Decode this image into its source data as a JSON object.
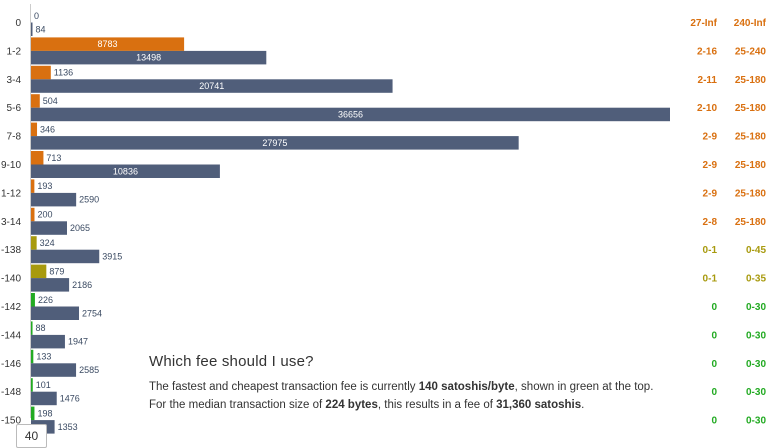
{
  "chart_data": {
    "type": "bar",
    "orientation": "horizontal",
    "categories": [
      "0",
      "1-2",
      "3-4",
      "5-6",
      "7-8",
      "9-10",
      "1-12",
      "3-14",
      "-138",
      "-140",
      "-142",
      "-144",
      "-146",
      "-148",
      "-150"
    ],
    "series": [
      {
        "values": [
          0,
          8783,
          1136,
          504,
          346,
          713,
          193,
          200,
          324,
          879,
          226,
          88,
          133,
          101,
          198
        ]
      },
      {
        "values": [
          84,
          13498,
          20741,
          36656,
          27975,
          10836,
          2590,
          2065,
          3915,
          2186,
          2754,
          1947,
          2585,
          1476,
          1353
        ]
      }
    ],
    "first_series_colors": [
      "#d97010",
      "#d97010",
      "#d97010",
      "#d97010",
      "#d97010",
      "#d97010",
      "#d97010",
      "#d97010",
      "#a89a0e",
      "#a89a0e",
      "#22aa22",
      "#22aa22",
      "#22aa22",
      "#22aa22",
      "#22aa22"
    ],
    "second_series_color": "#505e7a",
    "xlim": [
      0,
      36656
    ],
    "delay_blocks": [
      "27-Inf",
      "2-16",
      "2-11",
      "2-10",
      "2-9",
      "2-9",
      "2-9",
      "2-8",
      "0-1",
      "0-1",
      "0",
      "0",
      "0",
      "0",
      "0"
    ],
    "delay_minutes": [
      "240-Inf",
      "25-240",
      "25-180",
      "25-180",
      "25-180",
      "25-180",
      "25-180",
      "25-180",
      "0-45",
      "0-35",
      "0-30",
      "0-30",
      "0-30",
      "0-30",
      "0-30"
    ],
    "delay_colors": [
      "#d97010",
      "#d97010",
      "#d97010",
      "#d97010",
      "#d97010",
      "#d97010",
      "#d97010",
      "#d97010",
      "#a89a0e",
      "#a89a0e",
      "#22aa22",
      "#22aa22",
      "#22aa22",
      "#22aa22",
      "#22aa22"
    ]
  },
  "info": {
    "title": "Which fee should I use?",
    "line1_pre": "The fastest and cheapest transaction fee is currently ",
    "line1_bold": "140 satoshis/byte",
    "line1_post": ", shown in green at the top.",
    "line2_pre": "For the median transaction size of ",
    "line2_bold1": "224 bytes",
    "line2_mid": ", this results in a fee of ",
    "line2_bold2": "31,360 satoshis",
    "line2_post": "."
  },
  "pagination": {
    "current": "40"
  }
}
